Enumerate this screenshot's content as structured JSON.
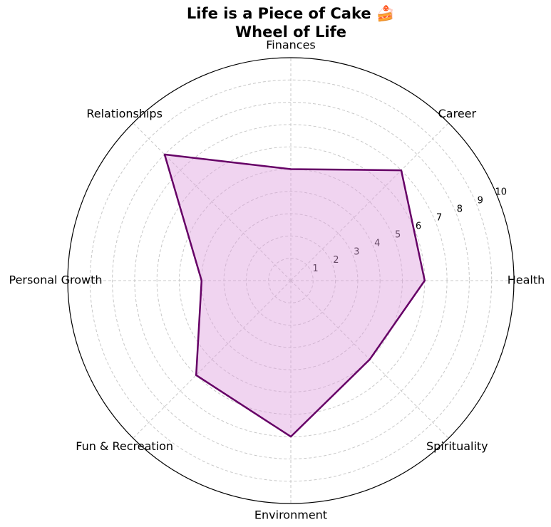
{
  "chart_data": {
    "type": "radar",
    "title": "Life is a Piece of Cake 🍰",
    "subtitle": "Wheel of Life",
    "categories": [
      "Health",
      "Career",
      "Finances",
      "Relationships",
      "Personal Growth",
      "Fun & Recreation",
      "Environment",
      "Spirituality"
    ],
    "values": [
      6,
      7,
      5,
      8,
      4,
      6,
      7,
      5
    ],
    "color": "#660066",
    "fill": "#dda0dd",
    "ylim": [
      0,
      10
    ],
    "yticks": [
      1,
      2,
      3,
      4,
      5,
      6,
      7,
      8,
      9,
      10
    ],
    "grid": true
  }
}
